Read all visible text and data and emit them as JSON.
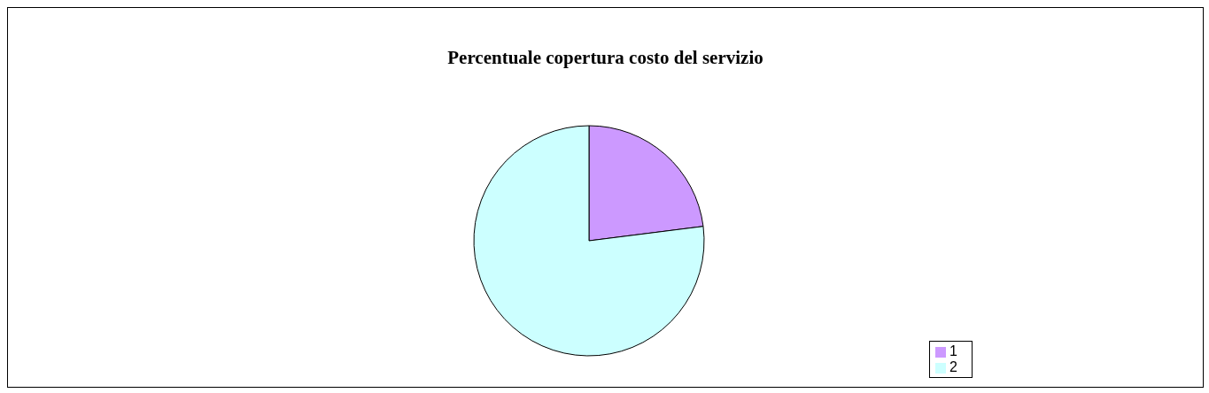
{
  "chart_data": {
    "type": "pie",
    "title": "Percentuale copertura costo del servizio",
    "categories": [
      "1",
      "2"
    ],
    "values": [
      23,
      77
    ],
    "colors": [
      "#cc99ff",
      "#ccffff"
    ],
    "legend": "bottom right"
  }
}
